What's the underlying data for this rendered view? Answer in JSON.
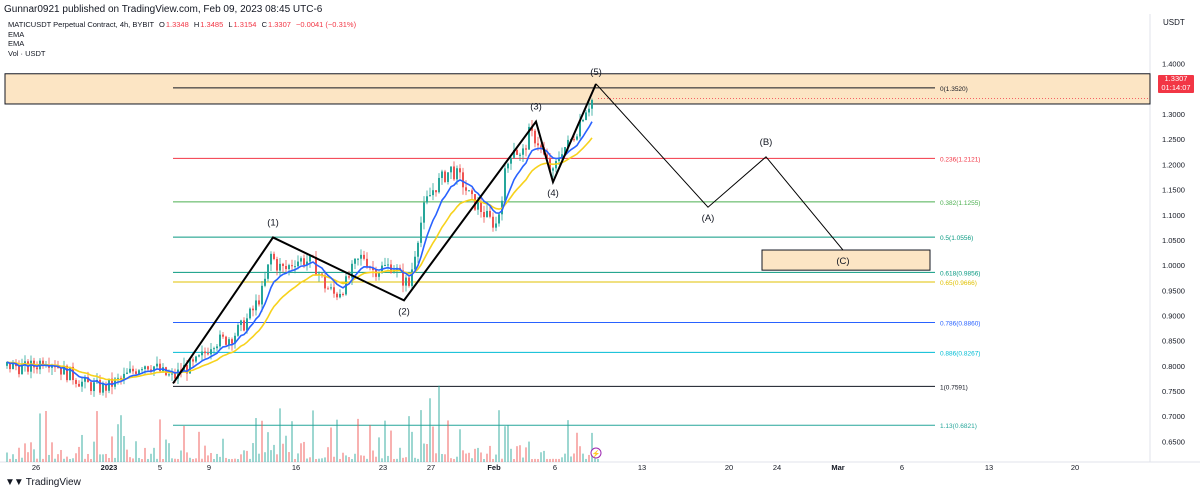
{
  "header": {
    "published": "Gunnar0921 published on TradingView.com, Feb 09, 2023 08:45 UTC-6",
    "symbol": "MATICUSDT Perpetual Contract, 4h, BYBIT",
    "ohlc": [
      {
        "label": "O",
        "value": "1.3348"
      },
      {
        "label": "H",
        "value": "1.3485"
      },
      {
        "label": "L",
        "value": "1.3154"
      },
      {
        "label": "C",
        "value": "1.3307"
      }
    ],
    "change": "−0.0041 (−0.31%)",
    "indicators": [
      "EMA",
      "EMA",
      "Vol · USDT"
    ]
  },
  "price_axis": {
    "currency": "USDT",
    "current_price": "1.3307",
    "countdown": "01:14:07"
  },
  "footer": {
    "brand": "TradingView"
  },
  "chart_data": {
    "type": "candlestick",
    "symbol": "MATICUSDT",
    "timeframe": "4h",
    "x_ticks": [
      "26",
      "2023",
      "5",
      "9",
      "16",
      "23",
      "27",
      "Feb",
      "6",
      "13",
      "20",
      "24",
      "Mar",
      "6",
      "13",
      "20"
    ],
    "y_ticks": [
      0.65,
      0.7,
      0.75,
      0.8,
      0.85,
      0.9,
      0.95,
      1.0,
      1.05,
      1.1,
      1.15,
      1.2,
      1.25,
      1.3,
      1.35,
      1.4
    ],
    "y_tick_labels": [
      "0.6500",
      "0.7000",
      "0.7500",
      "0.8000",
      "0.8500",
      "0.9000",
      "0.9500",
      "1.0000",
      "1.0500",
      "1.1000",
      "1.1500",
      "1.2000",
      "1.2500",
      "1.3000",
      "1.3500",
      "1.4000"
    ],
    "ylim": [
      0.615,
      1.455
    ],
    "price_path": [
      [
        0,
        0.8
      ],
      [
        14,
        0.8
      ],
      [
        24,
        0.795
      ],
      [
        34,
        0.8
      ],
      [
        44,
        0.815
      ],
      [
        54,
        0.805
      ],
      [
        62,
        0.79
      ],
      [
        72,
        0.78
      ],
      [
        82,
        0.765
      ],
      [
        92,
        0.76
      ],
      [
        102,
        0.755
      ],
      [
        112,
        0.765
      ],
      [
        122,
        0.775
      ],
      [
        132,
        0.79
      ],
      [
        142,
        0.805
      ],
      [
        152,
        0.8
      ],
      [
        162,
        0.785
      ],
      [
        172,
        0.775
      ],
      [
        182,
        0.795
      ],
      [
        192,
        0.8
      ],
      [
        202,
        0.82
      ],
      [
        212,
        0.85
      ],
      [
        222,
        0.85
      ],
      [
        232,
        0.86
      ],
      [
        242,
        0.88
      ],
      [
        252,
        0.91
      ],
      [
        262,
        0.95
      ],
      [
        270,
        1.02
      ],
      [
        276,
        1.0
      ],
      [
        284,
        0.99
      ],
      [
        294,
        1.01
      ],
      [
        304,
        1.01
      ],
      [
        314,
        1.0
      ],
      [
        324,
        0.96
      ],
      [
        334,
        0.94
      ],
      [
        344,
        0.96
      ],
      [
        354,
        1.0
      ],
      [
        362,
        1.02
      ],
      [
        372,
        0.99
      ],
      [
        382,
        0.995
      ],
      [
        392,
        1.0
      ],
      [
        400,
        0.975
      ],
      [
        408,
        0.96
      ],
      [
        416,
        1.05
      ],
      [
        424,
        1.12
      ],
      [
        432,
        1.15
      ],
      [
        440,
        1.17
      ],
      [
        450,
        1.19
      ],
      [
        460,
        1.17
      ],
      [
        470,
        1.13
      ],
      [
        480,
        1.11
      ],
      [
        488,
        1.09
      ],
      [
        496,
        1.08
      ],
      [
        504,
        1.18
      ],
      [
        512,
        1.24
      ],
      [
        520,
        1.21
      ],
      [
        528,
        1.26
      ],
      [
        536,
        1.25
      ],
      [
        544,
        1.21
      ],
      [
        552,
        1.18
      ],
      [
        560,
        1.23
      ],
      [
        568,
        1.24
      ],
      [
        576,
        1.27
      ],
      [
        584,
        1.31
      ],
      [
        592,
        1.33
      ]
    ],
    "ema_fast_color": "#2962ff",
    "ema_slow_color": "#f7d21c",
    "volume_bars": true,
    "fib_levels": [
      {
        "label": "0(1.3520)",
        "value": 1.352,
        "color": "#131722"
      },
      {
        "label": "0.236(1.2121)",
        "value": 1.2121,
        "color": "#f23645"
      },
      {
        "label": "0.382(1.1255)",
        "value": 1.1255,
        "color": "#4caf50"
      },
      {
        "label": "0.5(1.0556)",
        "value": 1.0556,
        "color": "#089981"
      },
      {
        "label": "0.618(0.9856)",
        "value": 0.9856,
        "color": "#089981"
      },
      {
        "label": "0.65(0.9666)",
        "value": 0.9666,
        "color": "#e0c000"
      },
      {
        "label": "0.786(0.8860)",
        "value": 0.886,
        "color": "#2962ff"
      },
      {
        "label": "0.886(0.8267)",
        "value": 0.8267,
        "color": "#00bcd4"
      },
      {
        "label": "1(0.7591)",
        "value": 0.7591,
        "color": "#131722"
      },
      {
        "label": "1.13(0.6821)",
        "value": 0.6821,
        "color": "#26a69a"
      }
    ],
    "resistance_zone": [
      1.32,
      1.38
    ],
    "target_zone": [
      0.99,
      1.03
    ],
    "wave_labels": [
      {
        "label": "(1)",
        "value": 1.055
      },
      {
        "label": "(2)",
        "value": 0.93
      },
      {
        "label": "(3)",
        "value": 1.285
      },
      {
        "label": "(4)",
        "value": 1.165
      },
      {
        "label": "(5)",
        "value": 1.36
      },
      {
        "label": "(A)",
        "value": 1.115
      },
      {
        "label": "(B)",
        "value": 1.215
      },
      {
        "label": "(C)",
        "value": 1.03
      }
    ]
  }
}
